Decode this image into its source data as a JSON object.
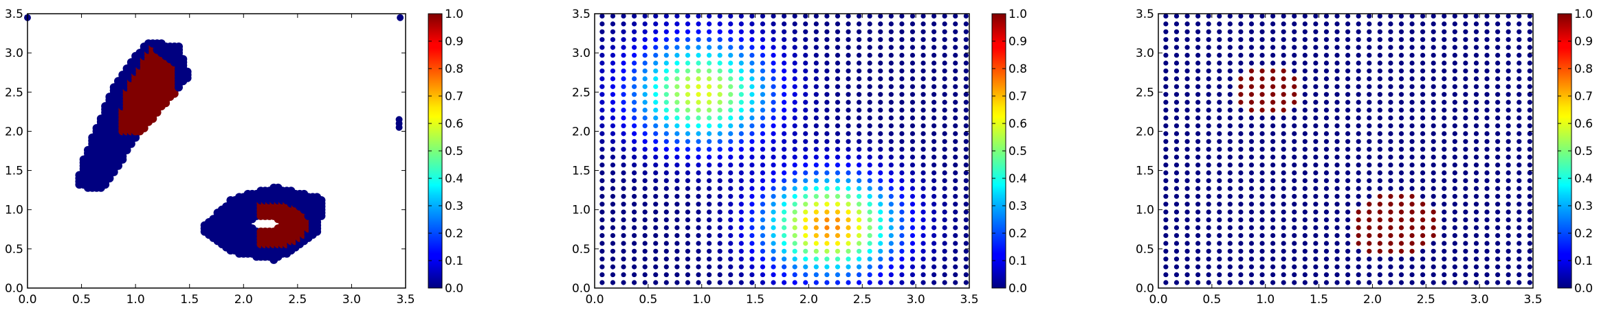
{
  "chart_data": [
    {
      "type": "scatter",
      "panel": "left",
      "title": "",
      "xlabel": "",
      "ylabel": "",
      "xlim": [
        0.0,
        3.5
      ],
      "ylim": [
        0.0,
        3.5
      ],
      "xticks": [
        "0.0",
        "0.5",
        "1.0",
        "1.5",
        "2.0",
        "2.5",
        "3.0",
        "3.5"
      ],
      "yticks": [
        "0.0",
        "0.5",
        "1.0",
        "1.5",
        "2.0",
        "2.5",
        "3.0",
        "3.5"
      ],
      "grid": false,
      "colorbar": {
        "range": [
          0.0,
          1.0
        ],
        "ticks": [
          "0.0",
          "0.1",
          "0.2",
          "0.3",
          "0.4",
          "0.5",
          "0.6",
          "0.7",
          "0.8",
          "0.9",
          "1.0"
        ],
        "colormap": "jet"
      },
      "description_of_points": "two clusters of points colored either 0.0 (dark blue) or 1.0 (dark red), plus a few outliers near the right edge",
      "clusters": [
        {
          "name": "upper-left",
          "blue_outline_approx": [
            [
              0.45,
              1.3
            ],
            [
              0.7,
              1.25
            ],
            [
              1.0,
              1.9
            ],
            [
              1.5,
              2.7
            ],
            [
              1.4,
              3.1
            ],
            [
              1.1,
              3.15
            ],
            [
              0.8,
              2.6
            ],
            [
              0.5,
              1.6
            ]
          ],
          "red_core_approx": [
            [
              0.85,
              2.0
            ],
            [
              1.3,
              1.95
            ],
            [
              1.4,
              2.8
            ],
            [
              1.15,
              3.1
            ],
            [
              0.9,
              2.5
            ]
          ]
        },
        {
          "name": "lower-right",
          "blue_outline_approx": [
            [
              1.6,
              0.75
            ],
            [
              1.9,
              1.15
            ],
            [
              2.3,
              1.3
            ],
            [
              2.75,
              1.15
            ],
            [
              2.7,
              0.7
            ],
            [
              2.3,
              0.35
            ],
            [
              1.9,
              0.45
            ]
          ],
          "hole_center": [
            2.2,
            0.82
          ]
        }
      ],
      "outliers": [
        [
          0.0,
          3.45
        ],
        [
          3.45,
          3.45
        ],
        [
          3.44,
          2.15
        ],
        [
          3.44,
          2.1
        ],
        [
          3.44,
          2.05
        ]
      ]
    },
    {
      "type": "scatter",
      "panel": "middle",
      "title": "",
      "xlabel": "",
      "ylabel": "",
      "xlim": [
        0.0,
        3.5
      ],
      "ylim": [
        0.0,
        3.5
      ],
      "xticks": [
        "0.0",
        "0.5",
        "1.0",
        "1.5",
        "2.0",
        "2.5",
        "3.0",
        "3.5"
      ],
      "yticks": [
        "0.0",
        "0.5",
        "1.0",
        "1.5",
        "2.0",
        "2.5",
        "3.0",
        "3.5"
      ],
      "grid": false,
      "grid_points": {
        "start": 0.0,
        "stop": 3.4,
        "step": 0.1
      },
      "value_model": "smooth bumps",
      "bumps": [
        {
          "center": [
            1.0,
            2.5
          ],
          "peak": 0.6,
          "sigma": 0.45
        },
        {
          "center": [
            2.2,
            0.8
          ],
          "peak": 0.75,
          "sigma": 0.42
        }
      ],
      "colorbar": {
        "range": [
          0.0,
          1.0
        ],
        "ticks": [
          "0.0",
          "0.1",
          "0.2",
          "0.3",
          "0.4",
          "0.5",
          "0.6",
          "0.7",
          "0.8",
          "0.9",
          "1.0"
        ],
        "colormap": "jet"
      }
    },
    {
      "type": "scatter",
      "panel": "right",
      "title": "",
      "xlabel": "",
      "ylabel": "",
      "xlim": [
        0.0,
        3.5
      ],
      "ylim": [
        0.0,
        3.5
      ],
      "xticks": [
        "0.0",
        "0.5",
        "1.0",
        "1.5",
        "2.0",
        "2.5",
        "3.0",
        "3.5"
      ],
      "yticks": [
        "0.0",
        "0.5",
        "1.0",
        "1.5",
        "2.0",
        "2.5",
        "3.0",
        "3.5"
      ],
      "grid": false,
      "grid_points": {
        "start": 0.0,
        "stop": 3.4,
        "step": 0.1
      },
      "value_model": "binary discs",
      "discs": [
        {
          "center": [
            1.0,
            2.5
          ],
          "radius": 0.32,
          "value": 1.0
        },
        {
          "center": [
            2.2,
            0.8
          ],
          "radius": 0.42,
          "value": 1.0
        }
      ],
      "colorbar": {
        "range": [
          0.0,
          1.0
        ],
        "ticks": [
          "0.0",
          "0.1",
          "0.2",
          "0.3",
          "0.4",
          "0.5",
          "0.6",
          "0.7",
          "0.8",
          "0.9",
          "1.0"
        ],
        "colormap": "jet"
      }
    }
  ]
}
